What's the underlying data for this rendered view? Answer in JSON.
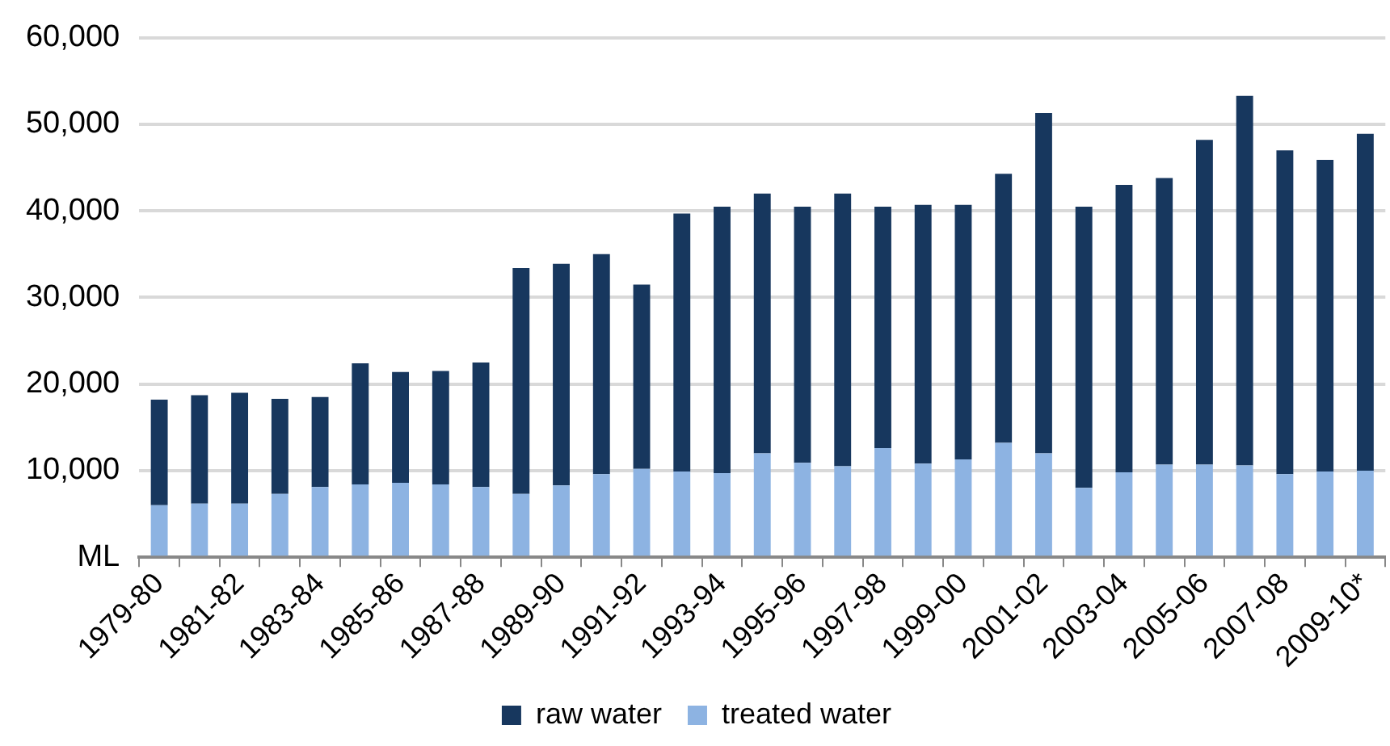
{
  "chart_data": {
    "type": "bar",
    "stacked": true,
    "categories": [
      "1979-80",
      null,
      "1981-82",
      null,
      "1983-84",
      null,
      "1985-86",
      null,
      "1987-88",
      null,
      "1989-90",
      null,
      "1991-92",
      null,
      "1993-94",
      null,
      "1995-96",
      null,
      "1997-98",
      null,
      "1999-00",
      null,
      "2001-02",
      null,
      "2003-04",
      null,
      "2005-06",
      null,
      "2007-08",
      null,
      "2009-10*"
    ],
    "series": [
      {
        "name": "treated water",
        "color": "#8db3e2",
        "values": [
          6000,
          6200,
          6200,
          7300,
          8100,
          8400,
          8600,
          8400,
          8100,
          7300,
          8300,
          9600,
          10200,
          9900,
          9700,
          12000,
          10900,
          10500,
          12600,
          10800,
          11300,
          13200,
          12000,
          8000,
          9800,
          10700,
          10700,
          10600,
          9600,
          9900,
          10000
        ]
      },
      {
        "name": "raw water",
        "color": "#17375e",
        "values": [
          12200,
          12500,
          12800,
          11000,
          10400,
          14000,
          12800,
          13100,
          14400,
          26100,
          25600,
          25400,
          21300,
          29800,
          30800,
          30000,
          29600,
          31500,
          27900,
          29900,
          29400,
          31100,
          39300,
          32500,
          33200,
          33100,
          37500,
          42700,
          37400,
          36000,
          38900
        ]
      }
    ],
    "ylim": [
      0,
      60000
    ],
    "yticks": [
      {
        "value": 0,
        "label": "ML"
      },
      {
        "value": 10000,
        "label": "10,000"
      },
      {
        "value": 20000,
        "label": "20,000"
      },
      {
        "value": 30000,
        "label": "30,000"
      },
      {
        "value": 40000,
        "label": "40,000"
      },
      {
        "value": 50000,
        "label": "50,000"
      },
      {
        "value": 60000,
        "label": "60,000"
      }
    ],
    "grid": "y",
    "legend": "bottom"
  }
}
